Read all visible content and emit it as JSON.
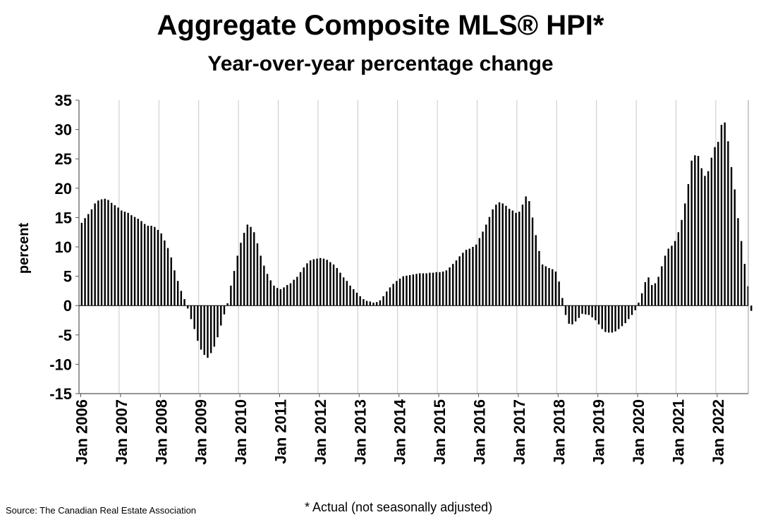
{
  "title": "Aggregate Composite MLS® HPI*",
  "subtitle": "Year-over-year percentage change",
  "source": "Source: The Canadian Real Estate Association",
  "footnote": "* Actual (not seasonally adjusted)",
  "chart_data": {
    "type": "bar",
    "title": "Aggregate Composite MLS® HPI*",
    "subtitle": "Year-over-year percentage change",
    "xlabel": "",
    "ylabel": "percent",
    "ylim": [
      -15,
      35
    ],
    "yticks": [
      35,
      30,
      25,
      20,
      15,
      10,
      5,
      0,
      -5,
      -10,
      -15
    ],
    "x_tick_labels": [
      "Jan 2006",
      "Jan 2007",
      "Jan 2008",
      "Jan 2009",
      "Jan 2010",
      "Jan 2011",
      "Jan 2012",
      "Jan 2013",
      "Jan 2014",
      "Jan 2015",
      "Jan 2016",
      "Jan 2017",
      "Jan 2018",
      "Jan 2019",
      "Jan 2020",
      "Jan 2021",
      "Jan 2022"
    ],
    "start": "Jan 2006",
    "frequency": "monthly",
    "grid": {
      "vertical": true,
      "horizontal": false
    },
    "bar_color": "#000000",
    "values": [
      14.1,
      14.9,
      15.6,
      16.4,
      17.4,
      17.9,
      18.1,
      18.2,
      18.0,
      17.5,
      17.1,
      16.7,
      16.2,
      16.0,
      15.8,
      15.4,
      15.1,
      14.8,
      14.4,
      13.9,
      13.6,
      13.6,
      13.4,
      12.9,
      12.3,
      11.1,
      9.8,
      8.2,
      6.0,
      4.2,
      2.5,
      1.1,
      -0.5,
      -2.3,
      -4.0,
      -6.0,
      -7.5,
      -8.4,
      -8.9,
      -8.1,
      -7.0,
      -5.4,
      -3.4,
      -1.5,
      0.4,
      3.4,
      5.9,
      8.5,
      10.7,
      12.4,
      13.8,
      13.4,
      12.5,
      10.6,
      8.5,
      6.8,
      5.4,
      4.3,
      3.4,
      3.0,
      2.8,
      3.1,
      3.5,
      3.8,
      4.4,
      4.9,
      5.7,
      6.5,
      7.2,
      7.7,
      7.9,
      8.0,
      8.1,
      8.0,
      7.8,
      7.4,
      7.0,
      6.4,
      5.6,
      4.8,
      4.2,
      3.4,
      2.8,
      2.2,
      1.6,
      1.1,
      0.8,
      0.7,
      0.5,
      0.6,
      0.9,
      1.6,
      2.4,
      3.1,
      3.7,
      4.2,
      4.6,
      5.0,
      5.1,
      5.2,
      5.3,
      5.4,
      5.5,
      5.5,
      5.5,
      5.6,
      5.6,
      5.7,
      5.7,
      5.8,
      6.0,
      6.5,
      7.1,
      7.7,
      8.4,
      9.0,
      9.5,
      9.7,
      10.0,
      10.4,
      11.5,
      12.6,
      13.8,
      15.1,
      16.4,
      17.2,
      17.6,
      17.4,
      17.0,
      16.5,
      16.2,
      15.8,
      16.0,
      17.2,
      18.6,
      17.8,
      15.0,
      12.0,
      9.3,
      7.0,
      6.7,
      6.4,
      6.2,
      5.8,
      4.1,
      1.3,
      -1.6,
      -3.1,
      -3.2,
      -2.7,
      -2.1,
      -1.4,
      -1.5,
      -1.6,
      -2.0,
      -2.5,
      -3.2,
      -4.0,
      -4.5,
      -4.6,
      -4.6,
      -4.4,
      -4.0,
      -3.5,
      -3.0,
      -2.3,
      -1.6,
      -0.8,
      0.5,
      2.1,
      4.0,
      4.8,
      3.5,
      3.8,
      4.9,
      6.7,
      8.5,
      9.7,
      10.2,
      11.0,
      12.5,
      14.6,
      17.4,
      20.7,
      24.7,
      25.6,
      25.5,
      23.4,
      22.1,
      22.9,
      25.2,
      27.0,
      27.9,
      30.8,
      31.2,
      28.0,
      23.6,
      19.8,
      14.9,
      11.0,
      7.1,
      3.3,
      -0.9
    ]
  }
}
